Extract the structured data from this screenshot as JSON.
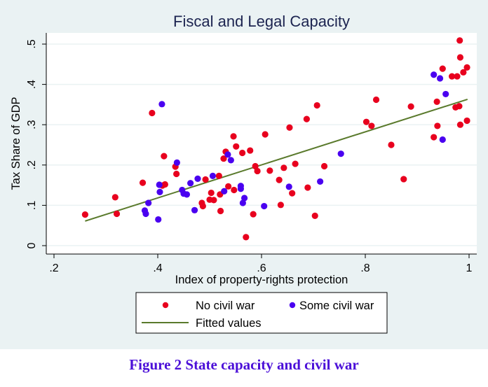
{
  "chart_data": {
    "type": "scatter",
    "title": "Fiscal and Legal Capacity",
    "xlabel": "Index of property-rights protection",
    "ylabel": "Tax Share of GDP",
    "xlim": [
      0.2,
      1.0
    ],
    "ylim": [
      0,
      0.5
    ],
    "x_ticks": [
      {
        "value": 0.2,
        "label": ".2"
      },
      {
        "value": 0.4,
        "label": ".4"
      },
      {
        "value": 0.6,
        "label": ".6"
      },
      {
        "value": 0.8,
        "label": ".8"
      },
      {
        "value": 1.0,
        "label": "1"
      }
    ],
    "y_ticks": [
      {
        "value": 0,
        "label": "0"
      },
      {
        "value": 0.1,
        "label": ".1"
      },
      {
        "value": 0.2,
        "label": ".2"
      },
      {
        "value": 0.3,
        "label": ".3"
      },
      {
        "value": 0.4,
        "label": ".4"
      },
      {
        "value": 0.5,
        "label": ".5"
      }
    ],
    "grid": "horizontal",
    "legend_position": "bottom",
    "series": [
      {
        "name": "No civil war",
        "kind": "scatter",
        "color": "#e8001e",
        "points": [
          [
            0.26,
            0.077
          ],
          [
            0.321,
            0.079
          ],
          [
            0.318,
            0.12
          ],
          [
            0.371,
            0.156
          ],
          [
            0.389,
            0.329
          ],
          [
            0.412,
            0.222
          ],
          [
            0.409,
            0.149
          ],
          [
            0.414,
            0.152
          ],
          [
            0.434,
            0.196
          ],
          [
            0.436,
            0.178
          ],
          [
            0.485,
            0.106
          ],
          [
            0.487,
            0.098
          ],
          [
            0.492,
            0.164
          ],
          [
            0.5,
            0.114
          ],
          [
            0.508,
            0.113
          ],
          [
            0.503,
            0.131
          ],
          [
            0.518,
            0.173
          ],
          [
            0.521,
            0.086
          ],
          [
            0.52,
            0.127
          ],
          [
            0.536,
            0.147
          ],
          [
            0.527,
            0.216
          ],
          [
            0.531,
            0.233
          ],
          [
            0.547,
            0.138
          ],
          [
            0.546,
            0.271
          ],
          [
            0.551,
            0.246
          ],
          [
            0.563,
            0.23
          ],
          [
            0.57,
            0.021
          ],
          [
            0.578,
            0.236
          ],
          [
            0.584,
            0.078
          ],
          [
            0.588,
            0.197
          ],
          [
            0.592,
            0.185
          ],
          [
            0.607,
            0.276
          ],
          [
            0.616,
            0.186
          ],
          [
            0.634,
            0.163
          ],
          [
            0.637,
            0.101
          ],
          [
            0.643,
            0.193
          ],
          [
            0.654,
            0.293
          ],
          [
            0.659,
            0.13
          ],
          [
            0.665,
            0.203
          ],
          [
            0.687,
            0.314
          ],
          [
            0.689,
            0.144
          ],
          [
            0.703,
            0.074
          ],
          [
            0.707,
            0.348
          ],
          [
            0.721,
            0.197
          ],
          [
            0.802,
            0.307
          ],
          [
            0.812,
            0.297
          ],
          [
            0.821,
            0.362
          ],
          [
            0.85,
            0.25
          ],
          [
            0.874,
            0.165
          ],
          [
            0.888,
            0.345
          ],
          [
            0.932,
            0.269
          ],
          [
            0.938,
            0.357
          ],
          [
            0.939,
            0.297
          ],
          [
            0.949,
            0.439
          ],
          [
            0.967,
            0.42
          ],
          [
            0.974,
            0.343
          ],
          [
            0.977,
            0.42
          ],
          [
            0.981,
            0.346
          ],
          [
            0.982,
            0.509
          ],
          [
            0.983,
            0.467
          ],
          [
            0.983,
            0.3
          ],
          [
            0.989,
            0.43
          ],
          [
            0.996,
            0.31
          ],
          [
            0.996,
            0.442
          ]
        ]
      },
      {
        "name": "Some civil war",
        "kind": "scatter",
        "color": "#4a00f0",
        "points": [
          [
            0.375,
            0.087
          ],
          [
            0.377,
            0.079
          ],
          [
            0.382,
            0.106
          ],
          [
            0.401,
            0.065
          ],
          [
            0.403,
            0.151
          ],
          [
            0.404,
            0.133
          ],
          [
            0.408,
            0.351
          ],
          [
            0.437,
            0.206
          ],
          [
            0.447,
            0.138
          ],
          [
            0.45,
            0.129
          ],
          [
            0.456,
            0.127
          ],
          [
            0.463,
            0.155
          ],
          [
            0.471,
            0.088
          ],
          [
            0.477,
            0.166
          ],
          [
            0.506,
            0.173
          ],
          [
            0.528,
            0.135
          ],
          [
            0.535,
            0.226
          ],
          [
            0.541,
            0.212
          ],
          [
            0.56,
            0.148
          ],
          [
            0.56,
            0.141
          ],
          [
            0.567,
            0.118
          ],
          [
            0.564,
            0.106
          ],
          [
            0.605,
            0.098
          ],
          [
            0.653,
            0.146
          ],
          [
            0.713,
            0.159
          ],
          [
            0.753,
            0.228
          ],
          [
            0.932,
            0.424
          ],
          [
            0.944,
            0.415
          ],
          [
            0.949,
            0.263
          ],
          [
            0.955,
            0.376
          ]
        ]
      },
      {
        "name": "Fitted values",
        "kind": "line",
        "color": "#5a7a2c",
        "points": [
          [
            0.26,
            0.061
          ],
          [
            0.997,
            0.363
          ]
        ]
      }
    ],
    "legend": [
      {
        "label": "No civil war",
        "marker": "dot",
        "color": "#e8001e"
      },
      {
        "label": "Some civil war",
        "marker": "dot",
        "color": "#4a00f0"
      },
      {
        "label": "Fitted values",
        "marker": "line",
        "color": "#5a7a2c"
      }
    ]
  },
  "caption": "Figure 2  State capacity and civil war"
}
